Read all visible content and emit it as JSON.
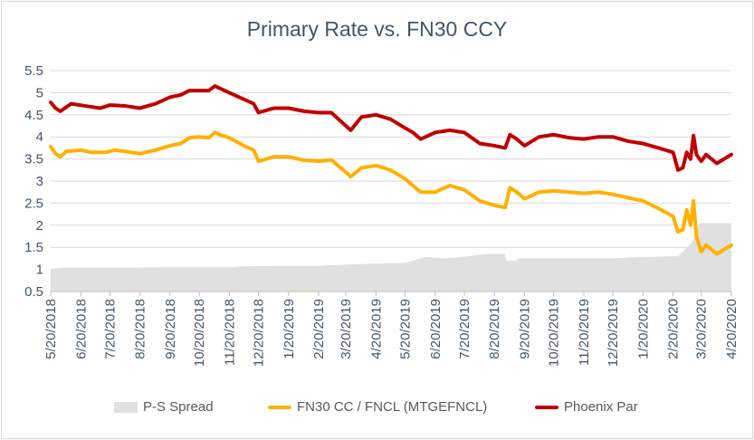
{
  "chart_data": {
    "type": "line",
    "title": "Primary Rate vs. FN30 CCY",
    "xlabel": "",
    "ylabel": "",
    "ylim": [
      0.5,
      5.5
    ],
    "yticks": [
      "0.5",
      "1",
      "1.5",
      "2",
      "2.5",
      "3",
      "3.5",
      "4",
      "4.5",
      "5",
      "5.5"
    ],
    "xlim": [
      "2018-05-20",
      "2020-04-20"
    ],
    "xticks": [
      "5/20/2018",
      "6/20/2018",
      "7/20/2018",
      "8/20/2018",
      "9/20/2018",
      "10/20/2018",
      "11/20/2018",
      "12/20/2018",
      "1/20/2019",
      "2/20/2019",
      "3/20/2019",
      "4/20/2019",
      "5/20/2019",
      "6/20/2019",
      "7/20/2019",
      "8/20/2019",
      "9/20/2019",
      "10/20/2019",
      "11/20/2019",
      "12/20/2019",
      "1/20/2020",
      "2/20/2020",
      "3/20/2020",
      "4/20/2020"
    ],
    "grid": "horizontal",
    "legend_position": "bottom",
    "series": [
      {
        "name": "P-S Spread",
        "kind": "area",
        "color": "#e0e0e0",
        "points": [
          [
            "2018-05-20",
            1.02
          ],
          [
            "2018-06-05",
            1.04
          ],
          [
            "2018-07-15",
            1.04
          ],
          [
            "2018-10-01",
            1.05
          ],
          [
            "2018-11-20",
            1.05
          ],
          [
            "2018-12-05",
            1.07
          ],
          [
            "2019-01-20",
            1.08
          ],
          [
            "2019-02-20",
            1.08
          ],
          [
            "2019-03-10",
            1.1
          ],
          [
            "2019-04-01",
            1.12
          ],
          [
            "2019-05-20",
            1.15
          ],
          [
            "2019-06-10",
            1.28
          ],
          [
            "2019-07-01",
            1.25
          ],
          [
            "2019-07-25",
            1.3
          ],
          [
            "2019-08-10",
            1.35
          ],
          [
            "2019-08-31",
            1.35
          ],
          [
            "2019-09-01",
            1.2
          ],
          [
            "2019-09-10",
            1.2
          ],
          [
            "2019-09-15",
            1.25
          ],
          [
            "2019-12-20",
            1.25
          ],
          [
            "2020-01-20",
            1.28
          ],
          [
            "2020-02-25",
            1.3
          ],
          [
            "2020-03-01",
            1.4
          ],
          [
            "2020-03-10",
            1.6
          ],
          [
            "2020-03-15",
            1.8
          ],
          [
            "2020-03-18",
            2.05
          ],
          [
            "2020-04-20",
            2.05
          ]
        ]
      },
      {
        "name": "FN30 CC / FNCL (MTGEFNCL)",
        "kind": "line",
        "color": "#ffb000",
        "points": [
          [
            "2018-05-20",
            3.78
          ],
          [
            "2018-05-25",
            3.62
          ],
          [
            "2018-05-30",
            3.55
          ],
          [
            "2018-06-05",
            3.67
          ],
          [
            "2018-06-20",
            3.7
          ],
          [
            "2018-07-01",
            3.65
          ],
          [
            "2018-07-15",
            3.65
          ],
          [
            "2018-07-25",
            3.7
          ],
          [
            "2018-08-05",
            3.67
          ],
          [
            "2018-08-20",
            3.62
          ],
          [
            "2018-09-05",
            3.7
          ],
          [
            "2018-09-20",
            3.8
          ],
          [
            "2018-10-01",
            3.85
          ],
          [
            "2018-10-10",
            3.98
          ],
          [
            "2018-10-20",
            4.0
          ],
          [
            "2018-10-30",
            3.98
          ],
          [
            "2018-11-05",
            4.1
          ],
          [
            "2018-11-10",
            4.05
          ],
          [
            "2018-11-20",
            3.98
          ],
          [
            "2018-12-05",
            3.8
          ],
          [
            "2018-12-15",
            3.7
          ],
          [
            "2018-12-20",
            3.45
          ],
          [
            "2019-01-05",
            3.55
          ],
          [
            "2019-01-20",
            3.55
          ],
          [
            "2019-02-05",
            3.47
          ],
          [
            "2019-02-20",
            3.45
          ],
          [
            "2019-03-05",
            3.48
          ],
          [
            "2019-03-20",
            3.2
          ],
          [
            "2019-03-25",
            3.1
          ],
          [
            "2019-04-05",
            3.3
          ],
          [
            "2019-04-20",
            3.35
          ],
          [
            "2019-05-05",
            3.25
          ],
          [
            "2019-05-20",
            3.05
          ],
          [
            "2019-05-28",
            2.9
          ],
          [
            "2019-06-05",
            2.75
          ],
          [
            "2019-06-20",
            2.75
          ],
          [
            "2019-07-05",
            2.9
          ],
          [
            "2019-07-20",
            2.8
          ],
          [
            "2019-08-05",
            2.55
          ],
          [
            "2019-08-20",
            2.45
          ],
          [
            "2019-08-31",
            2.4
          ],
          [
            "2019-09-05",
            2.85
          ],
          [
            "2019-09-12",
            2.75
          ],
          [
            "2019-09-20",
            2.6
          ],
          [
            "2019-10-05",
            2.75
          ],
          [
            "2019-10-20",
            2.78
          ],
          [
            "2019-11-05",
            2.75
          ],
          [
            "2019-11-20",
            2.72
          ],
          [
            "2019-12-05",
            2.75
          ],
          [
            "2019-12-20",
            2.7
          ],
          [
            "2020-01-05",
            2.62
          ],
          [
            "2020-01-20",
            2.55
          ],
          [
            "2020-02-05",
            2.38
          ],
          [
            "2020-02-20",
            2.2
          ],
          [
            "2020-02-25",
            1.85
          ],
          [
            "2020-03-01",
            1.9
          ],
          [
            "2020-03-05",
            2.35
          ],
          [
            "2020-03-09",
            2.0
          ],
          [
            "2020-03-12",
            2.55
          ],
          [
            "2020-03-15",
            1.75
          ],
          [
            "2020-03-20",
            1.4
          ],
          [
            "2020-03-25",
            1.55
          ],
          [
            "2020-04-05",
            1.35
          ],
          [
            "2020-04-20",
            1.55
          ]
        ]
      },
      {
        "name": "Phoenix Par",
        "kind": "line",
        "color": "#c00000",
        "points": [
          [
            "2018-05-20",
            4.78
          ],
          [
            "2018-05-25",
            4.65
          ],
          [
            "2018-05-30",
            4.58
          ],
          [
            "2018-06-10",
            4.75
          ],
          [
            "2018-06-25",
            4.7
          ],
          [
            "2018-07-10",
            4.65
          ],
          [
            "2018-07-20",
            4.72
          ],
          [
            "2018-08-05",
            4.7
          ],
          [
            "2018-08-20",
            4.65
          ],
          [
            "2018-09-05",
            4.75
          ],
          [
            "2018-09-20",
            4.9
          ],
          [
            "2018-10-01",
            4.95
          ],
          [
            "2018-10-10",
            5.05
          ],
          [
            "2018-10-20",
            5.05
          ],
          [
            "2018-10-30",
            5.05
          ],
          [
            "2018-11-05",
            5.15
          ],
          [
            "2018-11-10",
            5.1
          ],
          [
            "2018-11-20",
            5.0
          ],
          [
            "2018-12-05",
            4.85
          ],
          [
            "2018-12-15",
            4.75
          ],
          [
            "2018-12-20",
            4.55
          ],
          [
            "2019-01-05",
            4.65
          ],
          [
            "2019-01-20",
            4.65
          ],
          [
            "2019-02-05",
            4.58
          ],
          [
            "2019-02-20",
            4.55
          ],
          [
            "2019-03-05",
            4.55
          ],
          [
            "2019-03-20",
            4.25
          ],
          [
            "2019-03-25",
            4.15
          ],
          [
            "2019-04-05",
            4.45
          ],
          [
            "2019-04-20",
            4.5
          ],
          [
            "2019-05-05",
            4.4
          ],
          [
            "2019-05-20",
            4.2
          ],
          [
            "2019-05-28",
            4.1
          ],
          [
            "2019-06-05",
            3.95
          ],
          [
            "2019-06-20",
            4.1
          ],
          [
            "2019-07-05",
            4.15
          ],
          [
            "2019-07-20",
            4.1
          ],
          [
            "2019-08-05",
            3.85
          ],
          [
            "2019-08-20",
            3.8
          ],
          [
            "2019-08-31",
            3.75
          ],
          [
            "2019-09-05",
            4.05
          ],
          [
            "2019-09-12",
            3.95
          ],
          [
            "2019-09-20",
            3.8
          ],
          [
            "2019-10-05",
            4.0
          ],
          [
            "2019-10-20",
            4.05
          ],
          [
            "2019-11-05",
            3.98
          ],
          [
            "2019-11-20",
            3.95
          ],
          [
            "2019-12-05",
            4.0
          ],
          [
            "2019-12-20",
            4.0
          ],
          [
            "2020-01-05",
            3.9
          ],
          [
            "2020-01-20",
            3.85
          ],
          [
            "2020-02-05",
            3.75
          ],
          [
            "2020-02-20",
            3.65
          ],
          [
            "2020-02-25",
            3.25
          ],
          [
            "2020-03-01",
            3.3
          ],
          [
            "2020-03-05",
            3.65
          ],
          [
            "2020-03-09",
            3.5
          ],
          [
            "2020-03-12",
            4.03
          ],
          [
            "2020-03-15",
            3.6
          ],
          [
            "2020-03-20",
            3.45
          ],
          [
            "2020-03-25",
            3.6
          ],
          [
            "2020-04-05",
            3.4
          ],
          [
            "2020-04-20",
            3.6
          ]
        ]
      }
    ]
  }
}
